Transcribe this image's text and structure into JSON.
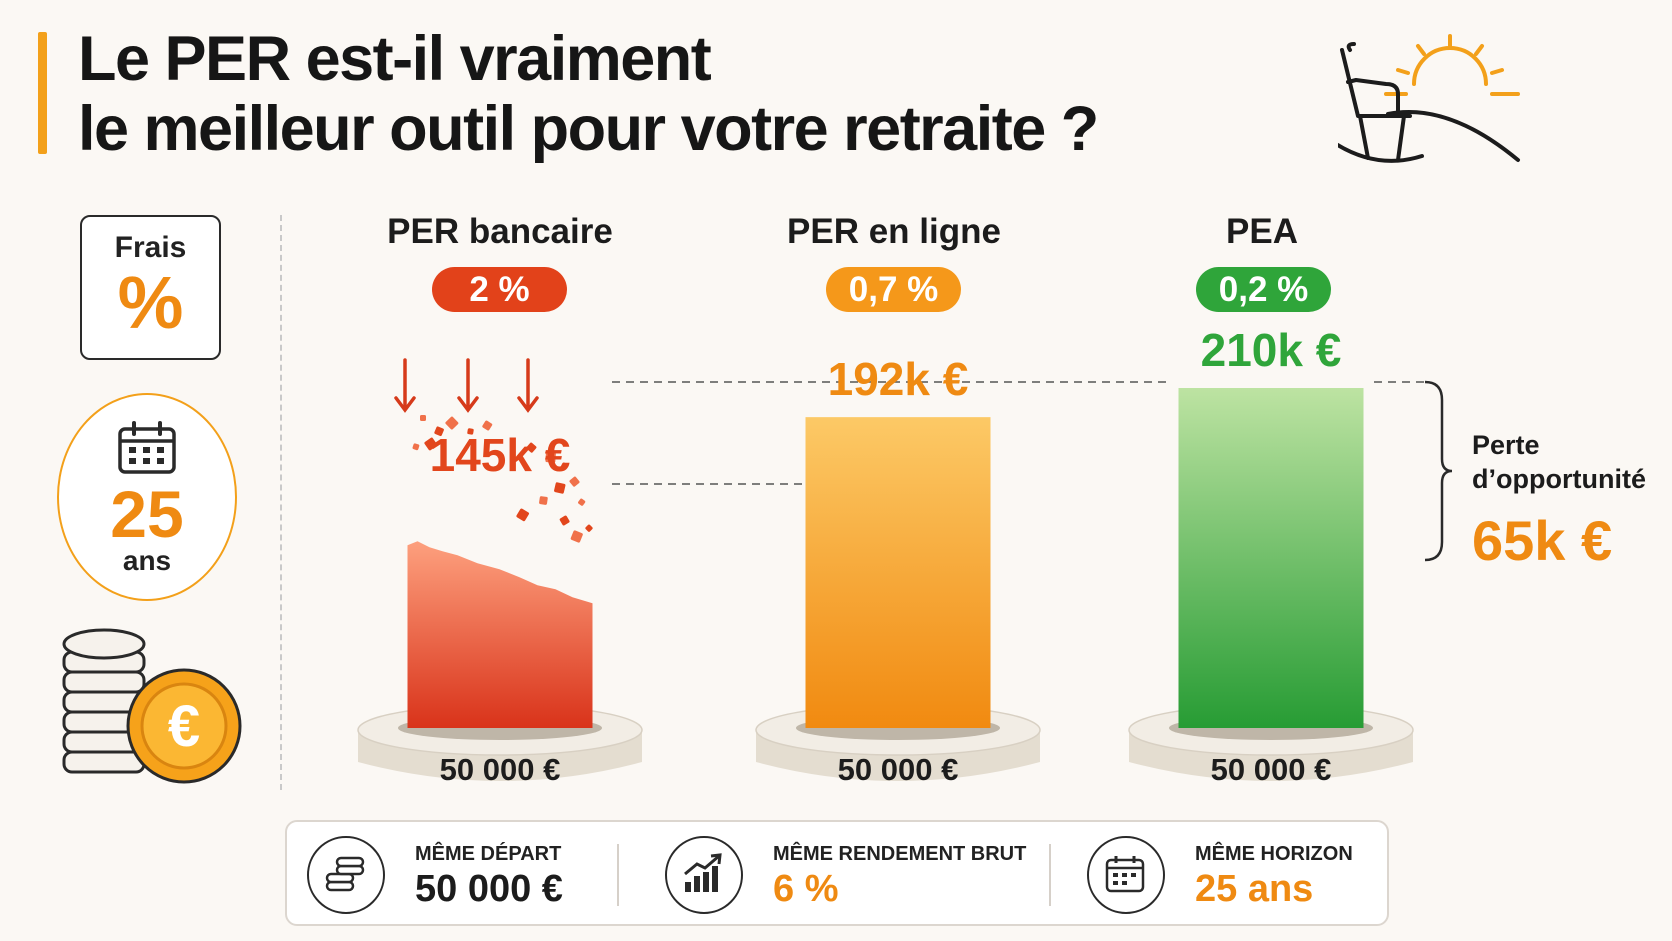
{
  "title": {
    "line1": "Le PER est-il vraiment",
    "line2": "le meilleur outil pour votre retraite ?"
  },
  "sidebar": {
    "frais_label": "Frais",
    "frais_symbol": "%",
    "years_value": "25",
    "years_unit": "ans"
  },
  "columns": [
    {
      "name": "PER bancaire",
      "fee": "2 %",
      "final": "145k €",
      "start": "50 000 €"
    },
    {
      "name": "PER en ligne",
      "fee": "0,7 %",
      "final": "192k €",
      "start": "50 000 €"
    },
    {
      "name": "PEA",
      "fee": "0,2 %",
      "final": "210k €",
      "start": "50 000 €"
    }
  ],
  "annotation": {
    "label": "Perte d’opportunité",
    "value": "65k €"
  },
  "summary": [
    {
      "label": "MÊME DÉPART",
      "value": "50 000 €",
      "icon": "coins-icon"
    },
    {
      "label": "MÊME RENDEMENT BRUT",
      "value": "6 %",
      "icon": "growth-chart-icon"
    },
    {
      "label": "MÊME HORIZON",
      "value": "25 ans",
      "icon": "calendar-icon"
    }
  ],
  "colors": {
    "accent": "#f3a01a",
    "per_bancaire": "#e2461c",
    "per_en_ligne": "#f5981a",
    "pea": "#2fa53a",
    "annotation": "#ef8a12"
  },
  "chart_data": {
    "type": "bar",
    "categories": [
      "PER bancaire",
      "PER en ligne",
      "PEA"
    ],
    "values": [
      145,
      192,
      210
    ],
    "value_labels": [
      "145k €",
      "192k €",
      "210k €"
    ],
    "fees_percent": [
      2,
      0.7,
      0.2
    ],
    "start_value": 50000,
    "years": 25,
    "gross_return_percent": 6,
    "opportunity_loss": 65
  }
}
